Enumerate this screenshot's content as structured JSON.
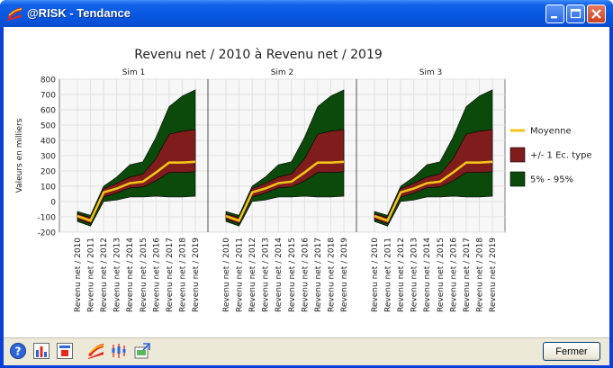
{
  "window": {
    "title": "@RISK - Tendance",
    "close_button_label": "Fermer"
  },
  "colors": {
    "mean": "#f2c418",
    "std_band": "#7f1c1c",
    "pct_band": "#0b4a0b",
    "title_bar": "#0757e0"
  },
  "chart_data": {
    "type": "area",
    "title": "Revenu net / 2010 à Revenu net / 2019",
    "ylabel": "Valeurs en milliers",
    "ylim": [
      -200,
      800
    ],
    "yticks": [
      -200,
      -100,
      0,
      100,
      200,
      300,
      400,
      500,
      600,
      700,
      800
    ],
    "grid": true,
    "legend_position": "right",
    "categories": [
      "Revenu net / 2010",
      "Revenu net / 2011",
      "Revenu net / 2012",
      "Revenu net / 2013",
      "Revenu net / 2014",
      "Revenu net / 2015",
      "Revenu net / 2016",
      "Revenu net / 2017",
      "Revenu net / 2018",
      "Revenu net / 2019"
    ],
    "legend": [
      {
        "label": "Moyenne",
        "kind": "line",
        "color": "#f2c418"
      },
      {
        "label": "+/- 1 Ec. type",
        "kind": "box",
        "color": "#7f1c1c"
      },
      {
        "label": "5% - 95%",
        "kind": "box",
        "color": "#0b4a0b"
      }
    ],
    "panels": [
      {
        "name": "Sim 1",
        "mean": [
          -95,
          -125,
          60,
          85,
          120,
          130,
          190,
          255,
          255,
          260
        ],
        "std_low": [
          -115,
          -145,
          30,
          55,
          90,
          95,
          135,
          190,
          190,
          195
        ],
        "std_high": [
          -80,
          -105,
          85,
          120,
          160,
          180,
          280,
          440,
          460,
          470
        ],
        "p5": [
          -130,
          -160,
          0,
          10,
          30,
          30,
          35,
          30,
          30,
          35
        ],
        "p95": [
          -65,
          -90,
          100,
          160,
          240,
          260,
          420,
          620,
          690,
          730
        ]
      },
      {
        "name": "Sim 2",
        "mean": [
          -95,
          -125,
          60,
          85,
          120,
          130,
          190,
          255,
          255,
          260
        ],
        "std_low": [
          -115,
          -145,
          30,
          55,
          90,
          95,
          135,
          190,
          190,
          195
        ],
        "std_high": [
          -80,
          -105,
          85,
          120,
          160,
          180,
          280,
          440,
          460,
          470
        ],
        "p5": [
          -130,
          -160,
          0,
          10,
          30,
          30,
          35,
          30,
          30,
          35
        ],
        "p95": [
          -65,
          -90,
          100,
          160,
          240,
          260,
          420,
          620,
          690,
          730
        ]
      },
      {
        "name": "Sim 3",
        "mean": [
          -95,
          -125,
          60,
          85,
          120,
          130,
          190,
          255,
          255,
          260
        ],
        "std_low": [
          -115,
          -145,
          30,
          55,
          90,
          95,
          135,
          190,
          190,
          195
        ],
        "std_high": [
          -80,
          -105,
          85,
          120,
          160,
          180,
          280,
          440,
          460,
          470
        ],
        "p5": [
          -130,
          -160,
          0,
          10,
          30,
          30,
          35,
          30,
          30,
          35
        ],
        "p95": [
          -65,
          -90,
          100,
          160,
          240,
          260,
          420,
          620,
          690,
          730
        ]
      }
    ]
  },
  "statusbar": {
    "icons": [
      "help-icon",
      "chart-icon",
      "window-icon",
      "risk-logo-icon",
      "stats-icon",
      "export-icon"
    ]
  }
}
